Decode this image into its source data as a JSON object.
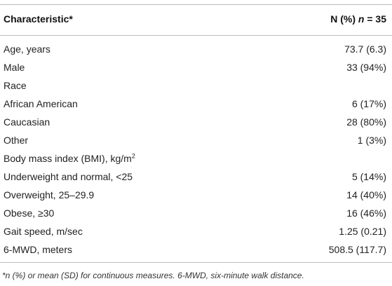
{
  "table": {
    "header": {
      "characteristic": "Characteristic*",
      "n_parts": [
        "N (%)",
        "n",
        "= 35"
      ]
    },
    "rows": [
      {
        "label": "Age, years",
        "value": "73.7 (6.3)"
      },
      {
        "label": "Male",
        "value": "33 (94%)"
      },
      {
        "label": "Race"
      },
      {
        "label": "African American",
        "value": "6 (17%)"
      },
      {
        "label": "Caucasian",
        "value": "28 (80%)"
      },
      {
        "label": "Other",
        "value": "1 (3%)"
      },
      {
        "label": "Body mass index (BMI), kg/m",
        "label_sup": "2"
      },
      {
        "label": "Underweight and normal, <25",
        "value": "5 (14%)"
      },
      {
        "label": "Overweight, 25–29.9",
        "value": "14 (40%)"
      },
      {
        "label": "Obese, ≥30",
        "value": "16 (46%)"
      },
      {
        "label": "Gait speed, m/sec",
        "value": "1.25 (0.21)"
      },
      {
        "label": "6-MWD, meters",
        "value": "508.5 (117.7)"
      }
    ],
    "footnote": "*n (%) or mean (SD) for continuous measures. 6-MWD, six-minute walk distance."
  }
}
